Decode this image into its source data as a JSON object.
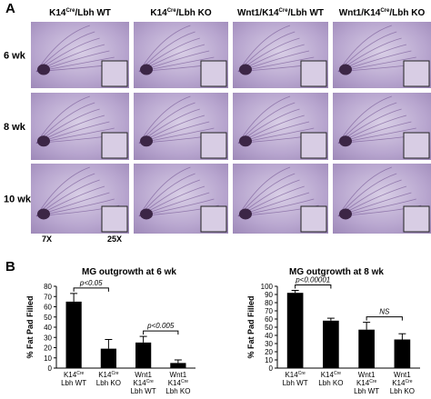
{
  "figure": {
    "panel_a": "A",
    "panel_b": "B",
    "headers": [
      {
        "base": "K14",
        "sup": "Cre",
        "rest": "/Lbh WT"
      },
      {
        "base": "K14",
        "sup": "Cre",
        "rest": "/Lbh KO"
      },
      {
        "base": "Wnt1/K14",
        "sup": "Cre",
        "rest": "/Lbh WT"
      },
      {
        "base": "Wnt1/K14",
        "sup": "Cre",
        "rest": "/Lbh KO"
      }
    ],
    "rows": [
      "6 wk",
      "8 wk",
      "10 wk"
    ],
    "magnifications": [
      "7X",
      "25X"
    ]
  },
  "chart_data": [
    {
      "type": "bar",
      "title": "MG outgrowth at 6 wk",
      "ylabel": "% Fat Pad Filled",
      "categories": [
        {
          "base": "K14",
          "sup": "Cre",
          "sub": "Lbh WT"
        },
        {
          "base": "K14",
          "sup": "Cre",
          "sub": "Lbh KO"
        },
        {
          "top": "Wnt1",
          "base": "K14",
          "sup": "Cre",
          "sub": "Lbh WT"
        },
        {
          "top": "Wnt1",
          "base": "K14",
          "sup": "Cre",
          "sub": "Lbh KO"
        }
      ],
      "values": [
        65,
        19,
        25,
        5
      ],
      "errors": [
        8,
        9,
        6,
        3
      ],
      "color": "#000000",
      "ylim": [
        0,
        80
      ],
      "yticks": [
        0,
        10,
        20,
        30,
        40,
        50,
        60,
        70,
        80
      ],
      "annotations": [
        "p<0.05",
        "p<0.005"
      ]
    },
    {
      "type": "bar",
      "title": "MG outgrowth at 8 wk",
      "ylabel": "% Fat Pad Filled",
      "categories": [
        {
          "base": "K14",
          "sup": "Cre",
          "sub": "Lbh WT"
        },
        {
          "base": "K14",
          "sup": "Cre",
          "sub": "Lbh KO"
        },
        {
          "top": "Wnt1",
          "base": "K14",
          "sup": "Cre",
          "sub": "Lbh WT"
        },
        {
          "top": "Wnt1",
          "base": "K14",
          "sup": "Cre",
          "sub": "Lbh KO"
        }
      ],
      "values": [
        92,
        58,
        47,
        35
      ],
      "errors": [
        3,
        3,
        9,
        7
      ],
      "color": "#000000",
      "ylim": [
        0,
        100
      ],
      "yticks": [
        0,
        10,
        20,
        30,
        40,
        50,
        60,
        70,
        80,
        90,
        100
      ],
      "annotations": [
        "p<0.00001",
        "NS"
      ]
    }
  ]
}
